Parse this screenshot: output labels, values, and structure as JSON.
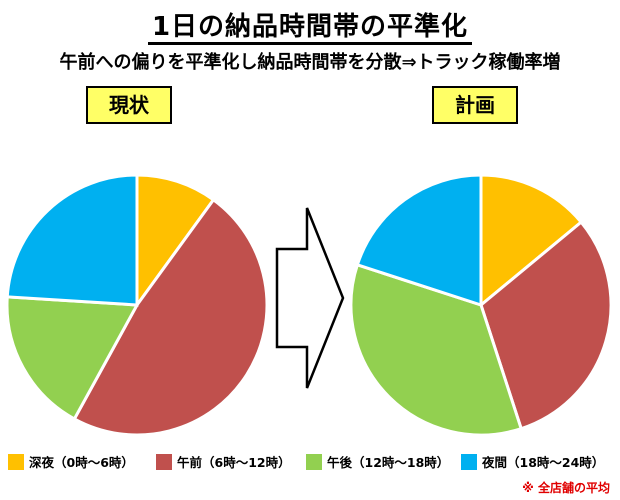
{
  "title": "1日の納品時間帯の平準化",
  "subtitle": "午前への偏りを平準化し納品時間帯を分散⇒トラック稼働率増",
  "note": "※ 全店舗の平均",
  "chart_data": {
    "type": "pie",
    "categories": [
      "深夜（0時～6時）",
      "午前（6時～12時）",
      "午後（12時～18時）",
      "夜間（18時～24時）"
    ],
    "colors": [
      "#ffc000",
      "#c0504d",
      "#92d050",
      "#00b0f0"
    ],
    "charts": [
      {
        "label": "現状",
        "values": [
          10,
          48,
          18,
          24
        ]
      },
      {
        "label": "計画",
        "values": [
          14,
          31,
          35,
          20
        ]
      }
    ],
    "legend_position": "bottom"
  }
}
